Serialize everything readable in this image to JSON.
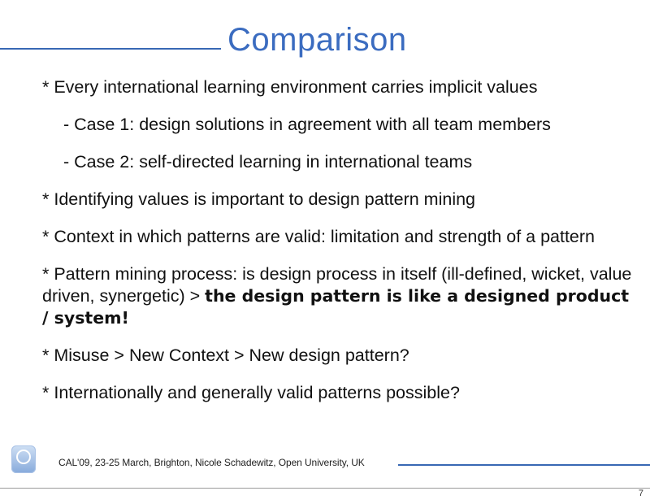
{
  "slide": {
    "title": "Comparison",
    "bullets": [
      "* Every international learning environment carries implicit values",
      "- Case 1: design solutions in agreement with all team members",
      "- Case 2: self-directed learning in international teams",
      "* Identifying values is important to design pattern mining",
      "* Context in which patterns are valid: limitation and strength of a pattern"
    ],
    "mining_prefix": "* Pattern mining process: is design process in itself (ill-defined, wicket, value driven, synergetic) > ",
    "mining_bold": "the design pattern is like a designed product / system!",
    "bullets_after": [
      "* Misuse > New Context > New design pattern?",
      "* Internationally and generally valid patterns possible?"
    ],
    "footer": "CAL'09, 23-25 March, Brighton, Nicole Schadewitz, Open University, UK",
    "logo_icon": "open-university-logo-icon",
    "accent_color": "#3868b4",
    "page_number": "7"
  }
}
